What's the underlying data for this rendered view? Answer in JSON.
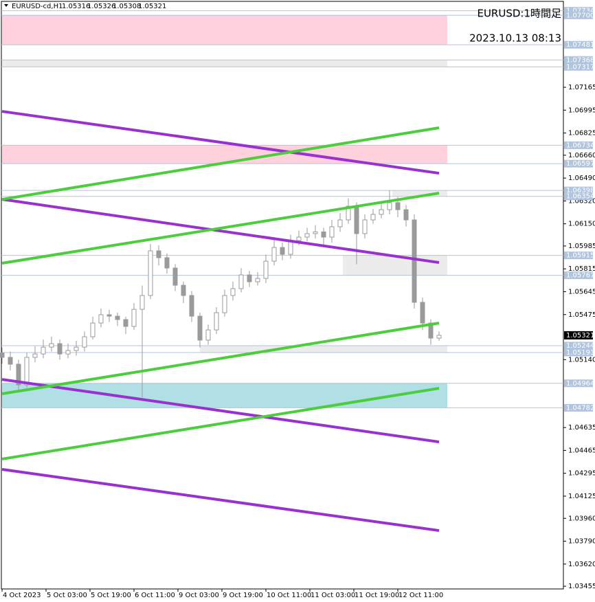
{
  "header": {
    "symbol": "EURUSD-cd,H1",
    "open": 1.05316,
    "high": 1.05326,
    "low": 1.05308,
    "close": 1.05321
  },
  "overlay": {
    "title": "EURUSD:1時間足",
    "datetime": "2023.10.13 08:13"
  },
  "chart_data": {
    "type": "candlestick",
    "x": [
      0,
      3,
      6,
      9,
      12,
      15,
      18,
      21,
      24,
      27,
      30,
      33,
      36,
      39,
      42,
      45,
      48,
      51,
      54,
      57,
      60,
      63,
      66,
      69,
      72,
      75,
      78,
      81,
      84,
      87,
      90,
      93,
      96,
      99,
      102,
      105,
      108,
      111,
      114,
      117,
      120,
      123,
      126,
      129,
      132,
      135,
      138,
      141,
      144,
      147,
      150,
      153,
      156,
      159
    ],
    "open": [
      1.0519,
      1.05157,
      1.05106,
      1.04952,
      1.05157,
      1.05182,
      1.05233,
      1.05259,
      1.05182,
      1.05208,
      1.05233,
      1.0531,
      1.05412,
      1.05474,
      1.05463,
      1.05438,
      1.05387,
      1.05514,
      1.05617,
      1.05949,
      1.05898,
      1.05821,
      1.05693,
      1.05617,
      1.05463,
      1.05285,
      1.05361,
      1.05489,
      1.05617,
      1.05668,
      1.0577,
      1.05719,
      1.05744,
      1.05872,
      1.05974,
      1.05923,
      1.06025,
      1.06051,
      1.06077,
      1.0609,
      1.06051,
      1.06128,
      1.06179,
      1.06281,
      1.06077,
      1.06179,
      1.0622,
      1.06255,
      1.06307,
      1.06255,
      1.06179,
      1.05566,
      1.05412,
      1.053
    ],
    "high": [
      1.0523,
      1.052,
      1.0514,
      1.0519,
      1.0524,
      1.0529,
      1.0531,
      1.0529,
      1.0526,
      1.0528,
      1.0535,
      1.0546,
      1.0552,
      1.0551,
      1.0549,
      1.0546,
      1.0556,
      1.0569,
      1.06,
      1.0599,
      1.0593,
      1.0585,
      1.0572,
      1.0565,
      1.0549,
      1.054,
      1.0553,
      1.0566,
      1.0572,
      1.0582,
      1.058,
      1.0579,
      1.0592,
      1.0605,
      1.0601,
      1.0607,
      1.061,
      1.0612,
      1.0614,
      1.0612,
      1.0618,
      1.0623,
      1.0634,
      1.0631,
      1.0622,
      1.0626,
      1.063,
      1.064,
      1.0635,
      1.0629,
      1.0622,
      1.056,
      1.0544,
      1.0535
    ],
    "low": [
      1.0511,
      1.0506,
      1.049,
      1.0493,
      1.0512,
      1.0515,
      1.052,
      1.0514,
      1.0515,
      1.0517,
      1.052,
      1.0529,
      1.0538,
      1.0542,
      1.0539,
      1.0533,
      1.0536,
      1.0486,
      1.0559,
      1.0584,
      1.0578,
      1.0565,
      1.0556,
      1.0542,
      1.0523,
      1.0525,
      1.0533,
      1.0546,
      1.0558,
      1.0564,
      1.0568,
      1.0569,
      1.0571,
      1.0584,
      1.0588,
      1.0589,
      1.0599,
      1.0602,
      1.0604,
      1.0599,
      1.0601,
      1.0609,
      1.0615,
      1.0585,
      1.0604,
      1.0615,
      1.0619,
      1.0622,
      1.062,
      1.0613,
      1.0552,
      1.0536,
      1.0525,
      1.0528
    ],
    "close": [
      1.05157,
      1.05106,
      1.04952,
      1.05157,
      1.05182,
      1.05233,
      1.05259,
      1.05182,
      1.05208,
      1.05233,
      1.0531,
      1.05412,
      1.05474,
      1.05463,
      1.05438,
      1.05387,
      1.05514,
      1.05617,
      1.05949,
      1.05898,
      1.05821,
      1.05693,
      1.05617,
      1.05463,
      1.05285,
      1.05361,
      1.05489,
      1.05617,
      1.05668,
      1.0577,
      1.05719,
      1.05744,
      1.05872,
      1.05974,
      1.05923,
      1.06025,
      1.06051,
      1.06077,
      1.0609,
      1.06051,
      1.06128,
      1.06179,
      1.06281,
      1.06077,
      1.06179,
      1.0622,
      1.06255,
      1.06307,
      1.06255,
      1.06179,
      1.05566,
      1.05412,
      1.053,
      1.05321
    ],
    "color": "#9a9a9a",
    "xlim": [
      -0.75,
      204.25
    ],
    "ylim": [
      1.03435,
      1.07814
    ],
    "xticks": [
      {
        "value": 0,
        "label": "4 Oct 2023"
      },
      {
        "value": 16,
        "label": "5 Oct 03:00"
      },
      {
        "value": 32,
        "label": "5 Oct 19:00"
      },
      {
        "value": 48,
        "label": "6 Oct 11:00"
      },
      {
        "value": 64,
        "label": "9 Oct 03:00"
      },
      {
        "value": 80,
        "label": "9 Oct 19:00"
      },
      {
        "value": 96,
        "label": "10 Oct 11:00"
      },
      {
        "value": 112,
        "label": "11 Oct 03:00"
      },
      {
        "value": 128,
        "label": "11 Oct 19:00"
      },
      {
        "value": 144,
        "label": "12 Oct 11:00"
      }
    ],
    "yticks": [
      1.07165,
      1.06995,
      1.06825,
      {
        "value": 1.0666,
        "label": "1.06660"
      },
      {
        "value": 1.0649,
        "label": "1.06490"
      },
      {
        "value": 1.0632,
        "label": "1.06320"
      },
      {
        "value": 1.0615,
        "label": "1.06150"
      },
      1.05985,
      1.05815,
      1.05645,
      1.05475,
      {
        "value": 1.0514,
        "label": "1.05140"
      },
      1.04635,
      1.04465,
      1.04295,
      1.04125,
      {
        "value": 1.0396,
        "label": "1.03960"
      },
      {
        "value": 1.0379,
        "label": "1.03790"
      },
      {
        "value": 1.0362,
        "label": "1.03620"
      },
      1.03455
    ],
    "levels": [
      1.07734,
      {
        "value": 1.077,
        "label": "1.07700"
      },
      1.07481,
      1.07368,
      1.07317,
      1.06734,
      1.06597,
      1.06398,
      1.06354,
      1.05915,
      1.05767,
      1.05244,
      1.05193,
      1.04964,
      1.04782
    ],
    "zones": [
      {
        "from": 1.077,
        "to": 1.07481,
        "start": 0,
        "color": "#ffd1dc"
      },
      {
        "from": 1.07368,
        "to": 1.07317,
        "start": 0,
        "color": "#ececec"
      },
      {
        "from": 1.06734,
        "to": 1.06597,
        "start": 0,
        "color": "#ffd1dc"
      },
      {
        "from": 1.06398,
        "to": 1.06354,
        "start": 142,
        "color": "#ececec"
      },
      {
        "from": 1.05915,
        "to": 1.05767,
        "start": 124,
        "color": "#ececec"
      },
      {
        "from": 1.05244,
        "to": 1.05193,
        "start": 72,
        "color": "#ececec"
      },
      {
        "from": 1.04964,
        "to": 1.04782,
        "start": 0,
        "color": "#b0dfe5"
      }
    ],
    "zone_end": 162,
    "trendlines": [
      {
        "color": "#9b30d0",
        "x": [
          0,
          159
        ],
        "y": [
          1.06986,
          1.06526
        ]
      },
      {
        "color": "#9b30d0",
        "x": [
          0,
          159
        ],
        "y": [
          1.06332,
          1.05862
        ]
      },
      {
        "color": "#9b30d0",
        "x": [
          0,
          159
        ],
        "y": [
          1.04993,
          1.04528
        ]
      },
      {
        "color": "#9b30d0",
        "x": [
          0,
          159
        ],
        "y": [
          1.04324,
          1.03869
        ]
      },
      {
        "color": "#4ccd3c",
        "x": [
          0,
          159
        ],
        "y": [
          1.06332,
          1.06864
        ]
      },
      {
        "color": "#4ccd3c",
        "x": [
          0,
          159
        ],
        "y": [
          1.05857,
          1.06378
        ]
      },
      {
        "color": "#4ccd3c",
        "x": [
          0,
          159
        ],
        "y": [
          1.04886,
          1.05412
        ]
      },
      {
        "color": "#4ccd3c",
        "x": [
          0,
          159
        ],
        "y": [
          1.04401,
          1.04927
        ]
      }
    ]
  }
}
